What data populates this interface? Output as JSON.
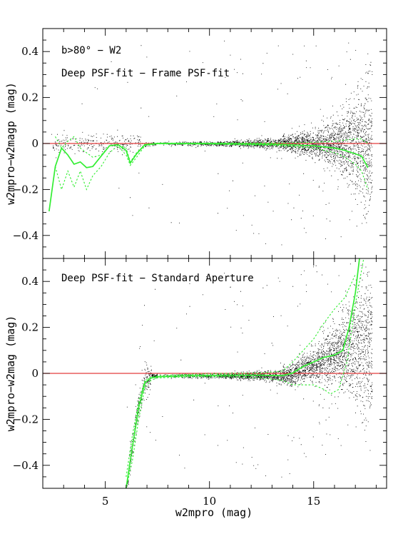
{
  "chart_data": [
    {
      "type": "scatter",
      "panel": "top",
      "annotations": [
        "b>80° − W2",
        "Deep PSF-fit − Frame PSF-fit"
      ],
      "ylabel": "w2mpro−w2magp (mag)",
      "xlabel": "",
      "xlim": [
        2.0,
        18.5
      ],
      "ylim": [
        -0.5,
        0.5
      ],
      "xticks": [
        5,
        10,
        15
      ],
      "yticks": [
        -0.4,
        -0.2,
        0,
        0.2,
        0.4
      ],
      "ytick_labels": [
        "−0.4",
        "−0.2",
        "0",
        "0.2",
        "0.4"
      ],
      "reference_line": {
        "y": 0,
        "color": "#e33c3c"
      },
      "series": [
        {
          "style": "solid",
          "color": "#33ee33",
          "x": [
            2.3,
            2.6,
            2.9,
            3.2,
            3.5,
            3.8,
            4.1,
            4.4,
            4.8,
            5.2,
            5.6,
            6.0,
            6.2,
            6.5,
            6.9,
            7.5,
            10.0,
            13.0,
            15.0,
            16.0,
            16.5,
            17.0,
            17.3,
            17.6
          ],
          "y": [
            -0.295,
            -0.1,
            -0.02,
            -0.05,
            -0.09,
            -0.08,
            -0.105,
            -0.1,
            -0.055,
            -0.01,
            -0.005,
            -0.03,
            -0.085,
            -0.045,
            -0.005,
            0,
            0,
            -0.003,
            -0.01,
            -0.02,
            -0.03,
            -0.045,
            -0.055,
            -0.105
          ]
        },
        {
          "style": "dotted",
          "color": "#33ee33",
          "x": [
            2.6,
            2.9,
            3.2,
            3.5,
            3.8,
            4.1,
            4.4,
            4.8,
            5.2,
            5.6,
            6.0,
            6.2,
            6.5,
            6.9,
            7.5,
            10.0,
            13.0,
            15.0,
            16.0,
            16.5,
            17.0,
            17.3,
            17.6
          ],
          "y": [
            0.03,
            -0.02,
            0.01,
            0.03,
            -0.02,
            -0.04,
            -0.06,
            -0.05,
            -0.01,
            -0.005,
            -0.02,
            -0.08,
            -0.04,
            -0.005,
            0.002,
            0.002,
            0.002,
            0.005,
            0.01,
            0.015,
            0.02,
            0.02,
            0.0
          ]
        },
        {
          "style": "dotted",
          "color": "#33ee33",
          "x": [
            2.6,
            2.9,
            3.2,
            3.5,
            3.8,
            4.1,
            4.4,
            4.8,
            5.2,
            5.6,
            6.0,
            6.2,
            6.5,
            6.9,
            7.5,
            10.0,
            13.0,
            15.0,
            16.0,
            16.5,
            17.0,
            17.3,
            17.6
          ],
          "y": [
            -0.1,
            -0.2,
            -0.12,
            -0.19,
            -0.12,
            -0.2,
            -0.14,
            -0.1,
            -0.04,
            -0.01,
            -0.05,
            -0.095,
            -0.06,
            -0.01,
            -0.002,
            -0.003,
            -0.008,
            -0.02,
            -0.04,
            -0.06,
            -0.09,
            -0.12,
            -0.2
          ]
        }
      ]
    },
    {
      "type": "scatter",
      "panel": "bottom",
      "annotations": [
        "Deep PSF-fit − Standard Aperture"
      ],
      "ylabel": "w2mpro−w2mag (mag)",
      "xlabel": "w2mpro (mag)",
      "xlim": [
        2.0,
        18.5
      ],
      "ylim": [
        -0.5,
        0.5
      ],
      "xticks": [
        5,
        10,
        15
      ],
      "yticks": [
        -0.4,
        -0.2,
        0,
        0.2,
        0.4
      ],
      "ytick_labels": [
        "−0.4",
        "−0.2",
        "0",
        "0.2",
        "0.4"
      ],
      "reference_line": {
        "y": 0,
        "color": "#e33c3c"
      },
      "series": [
        {
          "style": "solid",
          "color": "#33ee33",
          "x": [
            6.0,
            6.3,
            6.6,
            6.9,
            7.2,
            7.5,
            9.0,
            11.0,
            12.5,
            13.5,
            14.0,
            14.5,
            15.0,
            15.5,
            16.0,
            16.4,
            16.7,
            17.0,
            17.2
          ],
          "y": [
            -0.5,
            -0.32,
            -0.15,
            -0.04,
            -0.02,
            -0.015,
            -0.01,
            -0.008,
            -0.008,
            -0.01,
            0.002,
            0.03,
            0.05,
            0.07,
            0.08,
            0.1,
            0.2,
            0.35,
            0.5
          ]
        },
        {
          "style": "dotted",
          "color": "#33ee33",
          "x": [
            6.0,
            6.3,
            6.6,
            6.9,
            7.2,
            7.5,
            9.0,
            11.0,
            12.5,
            13.5,
            14.0,
            14.5,
            15.0,
            15.5,
            16.0,
            16.5,
            17.0
          ],
          "y": [
            -0.45,
            -0.27,
            -0.12,
            -0.03,
            -0.015,
            -0.01,
            -0.004,
            0.0,
            0.002,
            0.01,
            0.05,
            0.1,
            0.15,
            0.22,
            0.28,
            0.33,
            0.43
          ]
        },
        {
          "style": "dotted",
          "color": "#33ee33",
          "x": [
            6.0,
            6.3,
            6.6,
            6.9,
            7.2,
            7.5,
            9.0,
            11.0,
            12.5,
            13.5,
            14.0,
            14.5,
            15.0,
            15.5,
            15.8,
            16.2,
            16.6,
            17.0,
            17.4
          ],
          "y": [
            -0.5,
            -0.38,
            -0.2,
            -0.06,
            -0.03,
            -0.02,
            -0.015,
            -0.015,
            -0.02,
            -0.03,
            -0.05,
            -0.05,
            -0.05,
            -0.07,
            -0.09,
            -0.07,
            0.05,
            0.3,
            0.5
          ]
        }
      ]
    }
  ]
}
